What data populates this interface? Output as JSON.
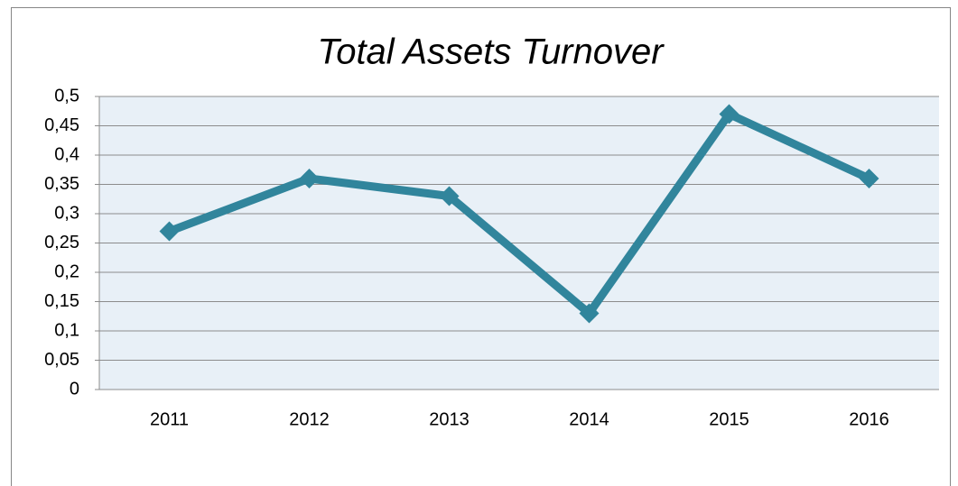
{
  "chart_data": {
    "type": "line",
    "title": "Total Assets Turnover",
    "categories": [
      "2011",
      "2012",
      "2013",
      "2014",
      "2015",
      "2016"
    ],
    "values": [
      0.27,
      0.36,
      0.33,
      0.13,
      0.47,
      0.36
    ],
    "color": "#31859c",
    "ylim": [
      0,
      0.5
    ],
    "yticks": [
      0,
      {
        "value": 0.05,
        "label": "0,05"
      },
      {
        "value": 0.1,
        "label": "0,1"
      },
      {
        "value": 0.15,
        "label": "0,15"
      },
      {
        "value": 0.2,
        "label": "0,2"
      },
      {
        "value": 0.25,
        "label": "0,25"
      },
      {
        "value": 0.3,
        "label": "0,3"
      },
      {
        "value": 0.35,
        "label": "0,35"
      },
      {
        "value": 0.4,
        "label": "0,4"
      },
      {
        "value": 0.45,
        "label": "0,45"
      },
      {
        "value": 0.5,
        "label": "0,5"
      }
    ],
    "grid": true
  }
}
